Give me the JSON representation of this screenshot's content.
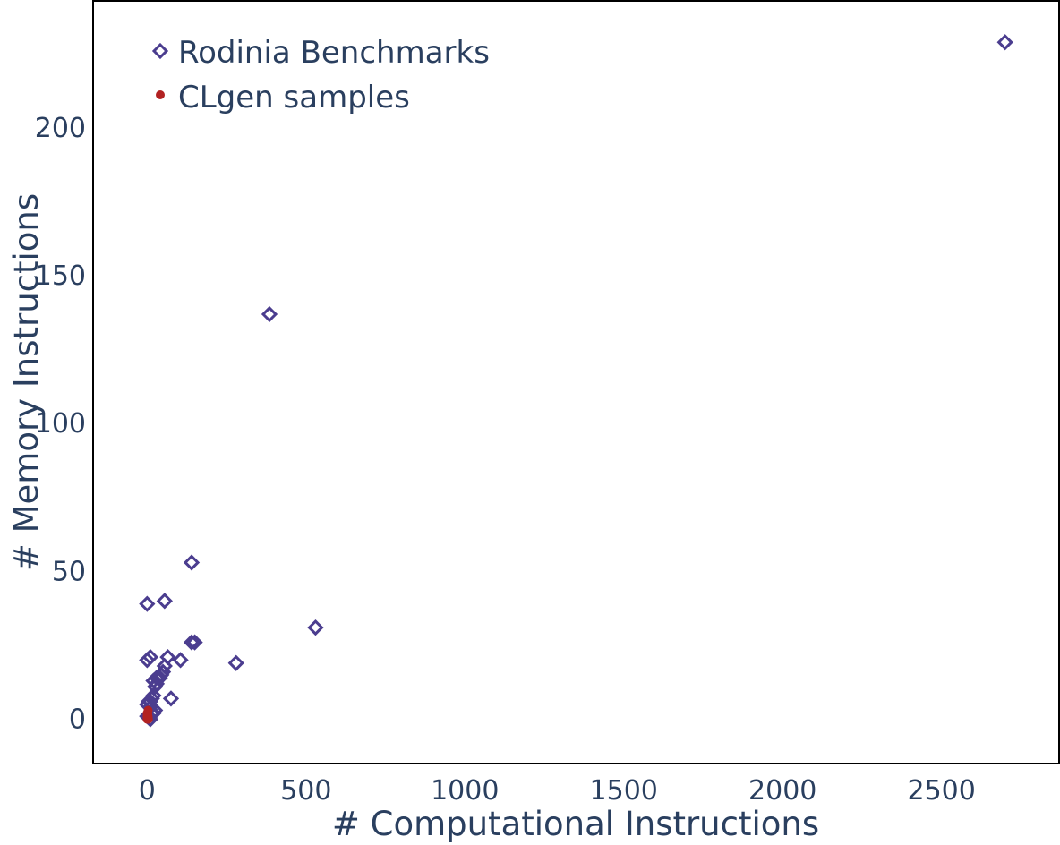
{
  "chart_data": {
    "type": "scatter",
    "title": "",
    "xlabel": "# Computational Instructions",
    "ylabel": "# Memory Instructions",
    "xlim": [
      -170,
      2870
    ],
    "ylim": [
      -15,
      243
    ],
    "xticks": [
      0,
      500,
      1000,
      1500,
      2000,
      2500
    ],
    "yticks": [
      0,
      50,
      100,
      150,
      200
    ],
    "grid": false,
    "legend_position": "top-left",
    "series": [
      {
        "name": "Rodinia Benchmarks",
        "marker": "diamond-open",
        "color": "#4b3d8f",
        "points": [
          [
            2700,
            229
          ],
          [
            385,
            137
          ],
          [
            140,
            53
          ],
          [
            530,
            31
          ],
          [
            55,
            40
          ],
          [
            0,
            39
          ],
          [
            150,
            26
          ],
          [
            140,
            26
          ],
          [
            280,
            19
          ],
          [
            65,
            21
          ],
          [
            105,
            20
          ],
          [
            10,
            21
          ],
          [
            0,
            20
          ],
          [
            55,
            18
          ],
          [
            50,
            16
          ],
          [
            45,
            15
          ],
          [
            40,
            14
          ],
          [
            30,
            14
          ],
          [
            20,
            13
          ],
          [
            30,
            12
          ],
          [
            25,
            11
          ],
          [
            75,
            7
          ],
          [
            20,
            8
          ],
          [
            15,
            7
          ],
          [
            10,
            6
          ],
          [
            5,
            6
          ],
          [
            0,
            5
          ],
          [
            10,
            4
          ],
          [
            25,
            3
          ],
          [
            20,
            2
          ],
          [
            15,
            2
          ],
          [
            5,
            1
          ],
          [
            0,
            1
          ],
          [
            10,
            0
          ]
        ]
      },
      {
        "name": "CLgen samples",
        "marker": "circle",
        "color": "#b22222",
        "points": [
          [
            0,
            0
          ],
          [
            1,
            1
          ],
          [
            2,
            0
          ],
          [
            0,
            2
          ],
          [
            3,
            1
          ],
          [
            1,
            0
          ],
          [
            2,
            2
          ],
          [
            4,
            0
          ],
          [
            0,
            1
          ],
          [
            3,
            3
          ]
        ]
      }
    ]
  }
}
